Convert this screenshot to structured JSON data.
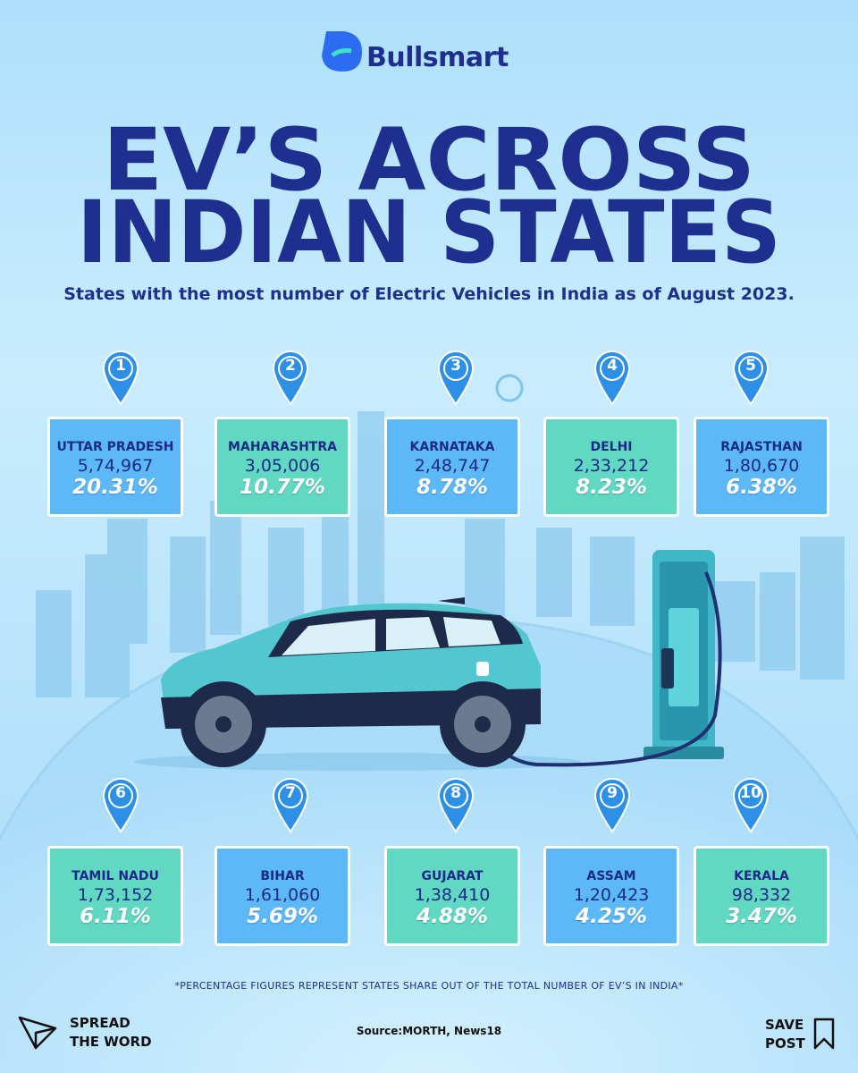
{
  "brand": "Bullsmart",
  "title": {
    "line1": "EV’S ACROSS",
    "line2": "INDIAN STATES"
  },
  "subtitle": "States with the most number of Electric Vehicles in India as of August 2023.",
  "states": [
    {
      "rank": "1",
      "name": "UTTAR PRADESH",
      "count": "5,74,967",
      "share": "20.31%"
    },
    {
      "rank": "2",
      "name": "MAHARASHTRA",
      "count": "3,05,006",
      "share": "10.77%"
    },
    {
      "rank": "3",
      "name": "KARNATAKA",
      "count": "2,48,747",
      "share": "8.78%"
    },
    {
      "rank": "4",
      "name": "DELHI",
      "count": "2,33,212",
      "share": "8.23%"
    },
    {
      "rank": "5",
      "name": "RAJASTHAN",
      "count": "1,80,670",
      "share": "6.38%"
    },
    {
      "rank": "6",
      "name": "TAMIL NADU",
      "count": "1,73,152",
      "share": "6.11%"
    },
    {
      "rank": "7",
      "name": "BIHAR",
      "count": "1,61,060",
      "share": "5.69%"
    },
    {
      "rank": "8",
      "name": "GUJARAT",
      "count": "1,38,410",
      "share": "4.88%"
    },
    {
      "rank": "9",
      "name": "ASSAM",
      "count": "1,20,423",
      "share": "4.25%"
    },
    {
      "rank": "10",
      "name": "KERALA",
      "count": "98,332",
      "share": "3.47%"
    }
  ],
  "footnote": "*PERCENTAGE FIGURES REPRESENT STATES SHARE OUT OF THE TOTAL NUMBER OF EV’S IN INDIA*",
  "source": "Source:MORTH, News18",
  "share_action": {
    "line1": "SPREAD",
    "line2": "THE WORD"
  },
  "save_action": {
    "line1": "SAVE",
    "line2": "POST"
  }
}
